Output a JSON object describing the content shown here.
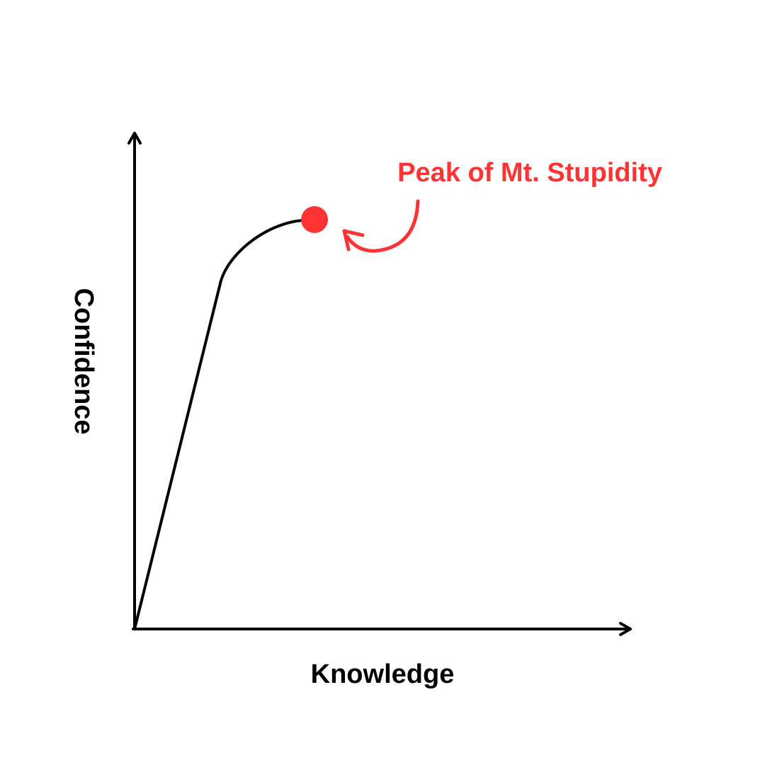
{
  "diagram": {
    "x_axis_label": "Knowledge",
    "y_axis_label": "Confidence",
    "annotation": {
      "label": "Peak of Mt. Stupidity"
    },
    "colors": {
      "line": "#000000",
      "accent": "#ff3333",
      "background": "#ffffff"
    }
  }
}
